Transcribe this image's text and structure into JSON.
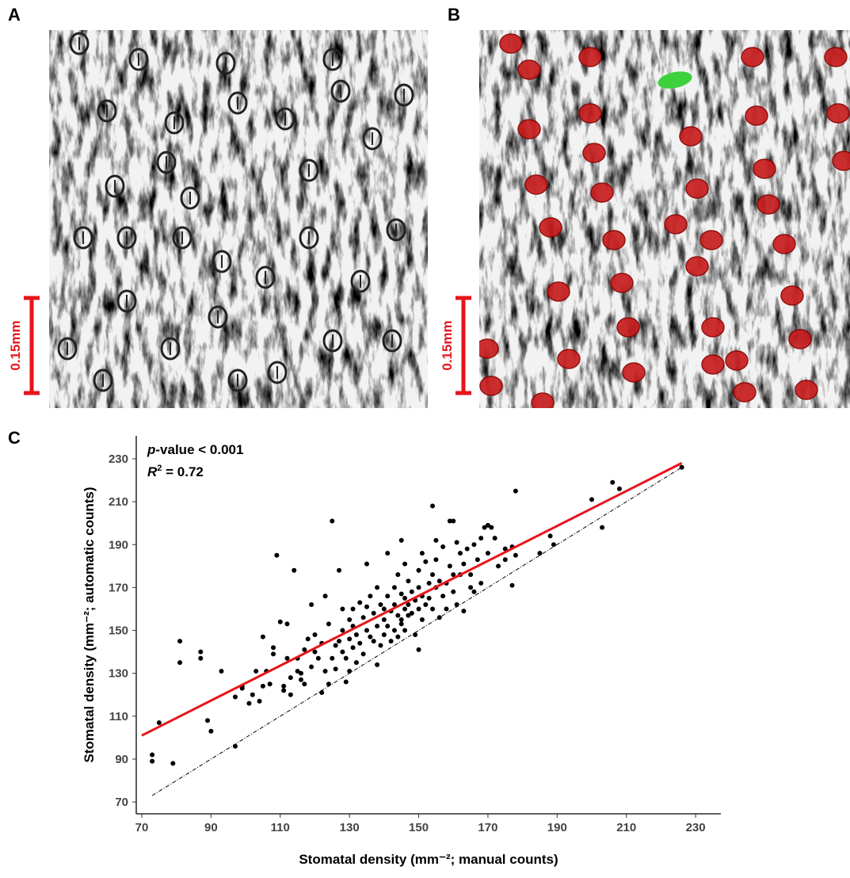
{
  "panels": [
    {
      "label": "A",
      "scale_bar": "0.15mm"
    },
    {
      "label": "B",
      "scale_bar": "0.15mm"
    }
  ],
  "chart_data": {
    "type": "scatter",
    "label": "C",
    "x_label": "Stomatal density (mm⁻²; manual counts)",
    "y_label": "Stomatal density (mm⁻²; automatic counts)",
    "annotations": [
      {
        "italic": "p",
        "text": "-value < 0.001"
      },
      {
        "italic": "R",
        "sup": "2",
        "text": " = 0.72"
      }
    ],
    "xlim": [
      68.4,
      237.3
    ],
    "ylim": [
      64.5,
      240.7
    ],
    "xticks": [
      70,
      90,
      110,
      130,
      150,
      170,
      190,
      210,
      230
    ],
    "yticks": [
      70,
      90,
      110,
      130,
      150,
      170,
      190,
      210,
      230
    ],
    "points": {
      "color": "#000000",
      "x": [
        73,
        73,
        75,
        79,
        81,
        81,
        87,
        87,
        89,
        90,
        93,
        97,
        97,
        99,
        99,
        101,
        102,
        103,
        104,
        105,
        105,
        106,
        107,
        108,
        108,
        109,
        110,
        111,
        111,
        112,
        112,
        113,
        113,
        114,
        115,
        115,
        116,
        116,
        117,
        117,
        118,
        119,
        119,
        120,
        120,
        121,
        122,
        122,
        123,
        123,
        124,
        124,
        125,
        125,
        126,
        126,
        127,
        127,
        128,
        128,
        128,
        129,
        129,
        130,
        130,
        130,
        131,
        131,
        131,
        132,
        132,
        133,
        133,
        134,
        134,
        135,
        135,
        135,
        136,
        136,
        137,
        137,
        138,
        138,
        138,
        139,
        139,
        140,
        140,
        140,
        141,
        141,
        141,
        142,
        142,
        143,
        143,
        143,
        144,
        144,
        144,
        145,
        145,
        145,
        145,
        146,
        146,
        146,
        146,
        147,
        147,
        147,
        148,
        148,
        149,
        149,
        150,
        150,
        150,
        150,
        151,
        151,
        151,
        152,
        152,
        153,
        153,
        154,
        154,
        154,
        155,
        155,
        155,
        156,
        156,
        157,
        157,
        158,
        158,
        159,
        159,
        160,
        160,
        160,
        161,
        161,
        162,
        162,
        163,
        163,
        164,
        165,
        165,
        166,
        166,
        167,
        168,
        168,
        169,
        170,
        170,
        171,
        172,
        173,
        175,
        175,
        177,
        177,
        178,
        178,
        185,
        188,
        189,
        200,
        203,
        206,
        208,
        226
      ],
      "y": [
        92,
        89,
        107,
        88,
        145,
        135,
        140,
        137,
        108,
        103,
        131,
        96,
        119,
        124,
        123,
        116,
        120,
        131,
        117,
        147,
        124,
        131,
        125,
        142,
        139,
        185,
        154,
        124,
        122,
        153,
        137,
        120,
        128,
        178,
        137,
        131,
        130,
        127,
        141,
        125,
        146,
        162,
        133,
        140,
        148,
        137,
        121,
        144,
        131,
        166,
        125,
        153,
        201,
        137,
        143,
        132,
        178,
        145,
        150,
        160,
        140,
        137,
        126,
        155,
        146,
        131,
        160,
        152,
        142,
        148,
        135,
        163,
        144,
        156,
        139,
        181,
        150,
        161,
        166,
        147,
        158,
        145,
        170,
        152,
        134,
        162,
        143,
        160,
        155,
        148,
        186,
        166,
        152,
        159,
        145,
        170,
        162,
        150,
        176,
        157,
        147,
        192,
        167,
        155,
        153,
        181,
        165,
        160,
        150,
        173,
        162,
        157,
        168,
        158,
        164,
        148,
        178,
        170,
        160,
        141,
        186,
        166,
        155,
        182,
        162,
        172,
        165,
        208,
        176,
        160,
        192,
        183,
        170,
        173,
        156,
        189,
        166,
        172,
        160,
        201,
        180,
        201,
        176,
        168,
        191,
        162,
        186,
        176,
        181,
        159,
        188,
        176,
        170,
        190,
        168,
        183,
        193,
        172,
        198,
        199,
        186,
        198,
        193,
        180,
        188,
        183,
        189,
        171,
        215,
        185,
        186,
        194,
        190,
        211,
        198,
        219,
        216,
        226
      ]
    },
    "fit": {
      "color": "#e8141b",
      "x": [
        70,
        226
      ],
      "y": [
        101,
        228
      ]
    },
    "identity": {
      "color": "#000000",
      "x": [
        73,
        226
      ],
      "y": [
        73,
        226
      ]
    }
  }
}
